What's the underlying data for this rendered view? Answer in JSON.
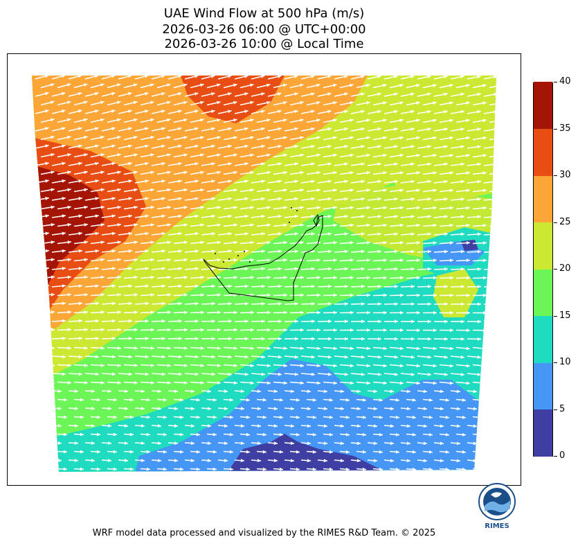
{
  "title": {
    "line1": "UAE Wind Flow at 500 hPa (m/s)",
    "line2": "2026-03-26 06:00 @ UTC+00:00",
    "line3": "2026-03-26 10:00 @ Local Time"
  },
  "colorbar": {
    "levels": [
      {
        "label": "0",
        "color": "#3f3ea3"
      },
      {
        "label": "5",
        "color": "#4596f5"
      },
      {
        "label": "10",
        "color": "#1fdbc0"
      },
      {
        "label": "15",
        "color": "#6cf556"
      },
      {
        "label": "20",
        "color": "#cde832"
      },
      {
        "label": "25",
        "color": "#fba636"
      },
      {
        "label": "30",
        "color": "#e84d14"
      },
      {
        "label": "35",
        "color": "#a51506"
      },
      {
        "label": "40",
        "color": null
      }
    ]
  },
  "map": {
    "region": "UAE",
    "wind_direction": "west-to-east",
    "vector_color": "#ffffff",
    "country_outline_color": "#000000"
  },
  "logo": {
    "text": "RIMES"
  },
  "footer": "WRF model data processed and visualized by the RIMES R&D Team. © 2025"
}
